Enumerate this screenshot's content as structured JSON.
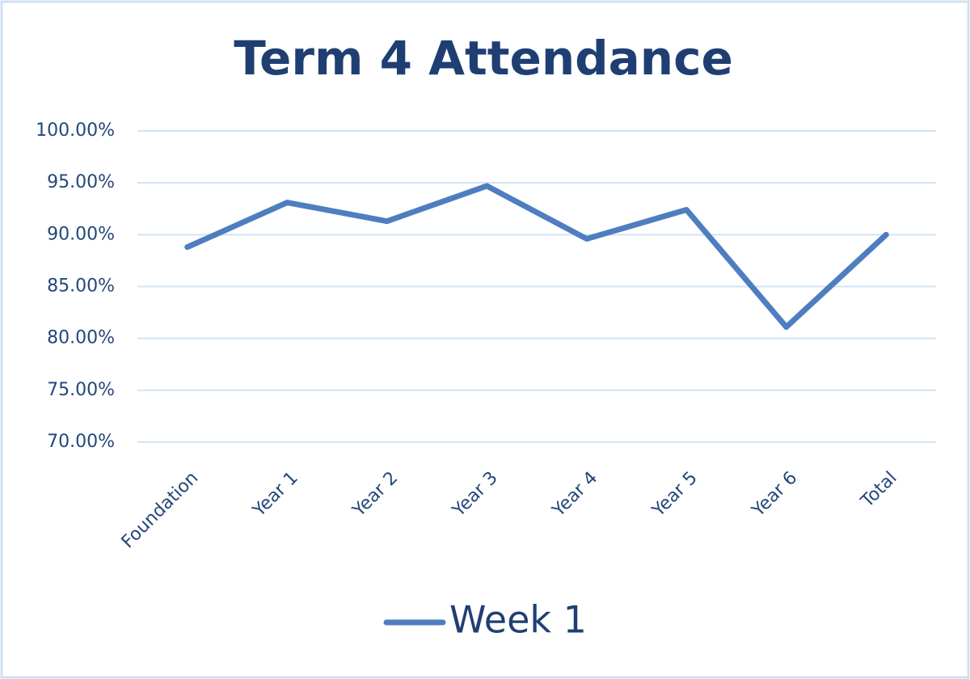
{
  "chart_data": {
    "type": "line",
    "title": "Term 4 Attendance",
    "categories": [
      "Foundation",
      "Year 1",
      "Year 2",
      "Year 3",
      "Year 4",
      "Year 5",
      "Year 6",
      "Total"
    ],
    "series": [
      {
        "name": "Week 1",
        "color": "#4f7ec0",
        "values": [
          88.8,
          93.1,
          91.3,
          94.7,
          89.6,
          92.4,
          81.1,
          90.0
        ]
      }
    ],
    "ylim": [
      70,
      100
    ],
    "yticks": [
      {
        "value": 70,
        "label": "70.00%"
      },
      {
        "value": 75,
        "label": "75.00%"
      },
      {
        "value": 80,
        "label": "80.00%"
      },
      {
        "value": 85,
        "label": "85.00%"
      },
      {
        "value": 90,
        "label": "90.00%"
      },
      {
        "value": 95,
        "label": "95.00%"
      },
      {
        "value": 100,
        "label": "100.00%"
      }
    ],
    "grid": true,
    "legend": "bottom"
  }
}
